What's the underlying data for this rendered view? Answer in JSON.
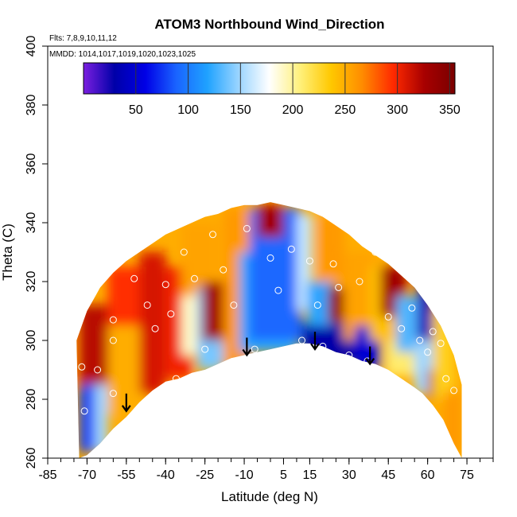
{
  "chart_data": {
    "type": "heatmap",
    "title": "ATOM3 Northbound Wind_Direction",
    "subtitle_lines": [
      "Flts: 7,8,9,10,11,12",
      "MMDD: 1014,1017,1019,1020,1023,1025"
    ],
    "xlabel": "Latitude (deg N)",
    "ylabel": "Theta (C)",
    "xlim": [
      -85,
      85
    ],
    "ylim": [
      260,
      400
    ],
    "x_ticks": [
      -85,
      -70,
      -55,
      -40,
      -25,
      -10,
      5,
      15,
      30,
      45,
      60,
      75
    ],
    "y_ticks": [
      260,
      280,
      300,
      320,
      340,
      360,
      380,
      400
    ],
    "colorbar": {
      "range": [
        0,
        355
      ],
      "ticks": [
        50,
        100,
        150,
        200,
        250,
        300,
        350
      ],
      "stops": [
        "#7b1fe0",
        "#0000a8",
        "#0000e6",
        "#1a64ff",
        "#1fa2ff",
        "#99d4ff",
        "#ffffff",
        "#fff07a",
        "#ffc800",
        "#ff8c00",
        "#ff2a00",
        "#a80000",
        "#7a0000"
      ]
    },
    "grid": false,
    "cells": [
      {
        "lat": [
          -73,
          -67
        ],
        "theta": [
          262,
          300
        ],
        "value": 80
      },
      {
        "lat": [
          -73,
          -60
        ],
        "theta": [
          285,
          312
        ],
        "value": 320
      },
      {
        "lat": [
          -67,
          -62
        ],
        "theta": [
          262,
          285
        ],
        "value": 150
      },
      {
        "lat": [
          -62,
          -50
        ],
        "theta": [
          275,
          305
        ],
        "value": 250
      },
      {
        "lat": [
          -62,
          -48
        ],
        "theta": [
          305,
          325
        ],
        "value": 295
      },
      {
        "lat": [
          -50,
          -40
        ],
        "theta": [
          282,
          330
        ],
        "value": 310
      },
      {
        "lat": [
          -40,
          -30
        ],
        "theta": [
          287,
          325
        ],
        "value": 300
      },
      {
        "lat": [
          -34,
          -28
        ],
        "theta": [
          295,
          325
        ],
        "value": 190
      },
      {
        "lat": [
          -34,
          -20
        ],
        "theta": [
          315,
          340
        ],
        "value": 255
      },
      {
        "lat": [
          -28,
          -18
        ],
        "theta": [
          290,
          318
        ],
        "value": 140
      },
      {
        "lat": [
          -26,
          -18
        ],
        "theta": [
          300,
          320
        ],
        "value": 330
      },
      {
        "lat": [
          -18,
          -8
        ],
        "theta": [
          292,
          345
        ],
        "value": 260
      },
      {
        "lat": [
          -12,
          10
        ],
        "theta": [
          296,
          330
        ],
        "value": 120
      },
      {
        "lat": [
          -8,
          12
        ],
        "theta": [
          300,
          345
        ],
        "value": 90
      },
      {
        "lat": [
          -5,
          5
        ],
        "theta": [
          335,
          346
        ],
        "value": 330
      },
      {
        "lat": [
          10,
          16
        ],
        "theta": [
          310,
          343
        ],
        "value": 160
      },
      {
        "lat": [
          12,
          32
        ],
        "theta": [
          293,
          306
        ],
        "value": 30
      },
      {
        "lat": [
          14,
          24
        ],
        "theta": [
          305,
          320
        ],
        "value": 120
      },
      {
        "lat": [
          18,
          28
        ],
        "theta": [
          320,
          342
        ],
        "value": 260
      },
      {
        "lat": [
          22,
          32
        ],
        "theta": [
          306,
          318
        ],
        "value": 340
      },
      {
        "lat": [
          28,
          40
        ],
        "theta": [
          300,
          330
        ],
        "value": 255
      },
      {
        "lat": [
          32,
          42
        ],
        "theta": [
          290,
          305
        ],
        "value": 50
      },
      {
        "lat": [
          38,
          48
        ],
        "theta": [
          300,
          325
        ],
        "value": 240
      },
      {
        "lat": [
          42,
          52
        ],
        "theta": [
          308,
          325
        ],
        "value": 330
      },
      {
        "lat": [
          44,
          56
        ],
        "theta": [
          288,
          300
        ],
        "value": 210
      },
      {
        "lat": [
          48,
          58
        ],
        "theta": [
          296,
          315
        ],
        "value": 130
      },
      {
        "lat": [
          55,
          62
        ],
        "theta": [
          282,
          300
        ],
        "value": 150
      },
      {
        "lat": [
          56,
          62
        ],
        "theta": [
          300,
          320
        ],
        "value": 20
      },
      {
        "lat": [
          60,
          66
        ],
        "theta": [
          280,
          290
        ],
        "value": 320
      },
      {
        "lat": [
          62,
          70
        ],
        "theta": [
          280,
          310
        ],
        "value": 230
      },
      {
        "lat": [
          66,
          73
        ],
        "theta": [
          262,
          283
        ],
        "value": 260
      }
    ],
    "observations": [
      {
        "lat": -72,
        "theta": 291
      },
      {
        "lat": -71,
        "theta": 276
      },
      {
        "lat": -66,
        "theta": 290
      },
      {
        "lat": -60,
        "theta": 307
      },
      {
        "lat": -60,
        "theta": 300
      },
      {
        "lat": -60,
        "theta": 282
      },
      {
        "lat": -52,
        "theta": 321
      },
      {
        "lat": -47,
        "theta": 312
      },
      {
        "lat": -44,
        "theta": 304
      },
      {
        "lat": -40,
        "theta": 319
      },
      {
        "lat": -38,
        "theta": 309
      },
      {
        "lat": -36,
        "theta": 287
      },
      {
        "lat": -33,
        "theta": 330
      },
      {
        "lat": -29,
        "theta": 321
      },
      {
        "lat": -25,
        "theta": 297
      },
      {
        "lat": -22,
        "theta": 336
      },
      {
        "lat": -18,
        "theta": 324
      },
      {
        "lat": -14,
        "theta": 312
      },
      {
        "lat": -9,
        "theta": 338
      },
      {
        "lat": -6,
        "theta": 297
      },
      {
        "lat": 0,
        "theta": 328
      },
      {
        "lat": 3,
        "theta": 317
      },
      {
        "lat": 8,
        "theta": 331
      },
      {
        "lat": 12,
        "theta": 300
      },
      {
        "lat": 15,
        "theta": 327
      },
      {
        "lat": 18,
        "theta": 312
      },
      {
        "lat": 20,
        "theta": 298
      },
      {
        "lat": 24,
        "theta": 326
      },
      {
        "lat": 26,
        "theta": 318
      },
      {
        "lat": 30,
        "theta": 295
      },
      {
        "lat": 34,
        "theta": 320
      },
      {
        "lat": 37,
        "theta": 293
      },
      {
        "lat": 40,
        "theta": 330
      },
      {
        "lat": 45,
        "theta": 308
      },
      {
        "lat": 50,
        "theta": 304
      },
      {
        "lat": 54,
        "theta": 311
      },
      {
        "lat": 57,
        "theta": 300
      },
      {
        "lat": 60,
        "theta": 296
      },
      {
        "lat": 62,
        "theta": 303
      },
      {
        "lat": 65,
        "theta": 299
      },
      {
        "lat": 67,
        "theta": 287
      },
      {
        "lat": 70,
        "theta": 283
      }
    ],
    "flight_arrows": [
      {
        "lat": -55,
        "theta": 276
      },
      {
        "lat": -9,
        "theta": 295
      },
      {
        "lat": 17,
        "theta": 297
      },
      {
        "lat": 38,
        "theta": 292
      }
    ],
    "envelope_top": [
      [
        -74,
        300
      ],
      [
        -70,
        310
      ],
      [
        -65,
        318
      ],
      [
        -60,
        323
      ],
      [
        -55,
        327
      ],
      [
        -50,
        330
      ],
      [
        -45,
        333
      ],
      [
        -40,
        336
      ],
      [
        -35,
        338
      ],
      [
        -30,
        340
      ],
      [
        -25,
        342
      ],
      [
        -20,
        343
      ],
      [
        -15,
        345
      ],
      [
        -10,
        346
      ],
      [
        -5,
        346
      ],
      [
        0,
        347
      ],
      [
        5,
        346
      ],
      [
        10,
        345
      ],
      [
        15,
        344
      ],
      [
        20,
        342
      ],
      [
        25,
        339
      ],
      [
        30,
        336
      ],
      [
        35,
        332
      ],
      [
        40,
        329
      ],
      [
        45,
        326
      ],
      [
        50,
        322
      ],
      [
        55,
        318
      ],
      [
        60,
        312
      ],
      [
        65,
        305
      ],
      [
        70,
        295
      ],
      [
        73,
        285
      ]
    ],
    "envelope_bottom": [
      [
        73,
        260
      ],
      [
        70,
        265
      ],
      [
        66,
        273
      ],
      [
        62,
        278
      ],
      [
        58,
        282
      ],
      [
        55,
        284
      ],
      [
        50,
        287
      ],
      [
        45,
        290
      ],
      [
        40,
        292
      ],
      [
        35,
        293
      ],
      [
        30,
        295
      ],
      [
        25,
        296
      ],
      [
        20,
        298
      ],
      [
        15,
        299
      ],
      [
        10,
        299
      ],
      [
        5,
        298
      ],
      [
        0,
        297
      ],
      [
        -5,
        296
      ],
      [
        -10,
        295
      ],
      [
        -15,
        294
      ],
      [
        -20,
        292
      ],
      [
        -25,
        290
      ],
      [
        -30,
        289
      ],
      [
        -35,
        287
      ],
      [
        -40,
        286
      ],
      [
        -45,
        283
      ],
      [
        -50,
        279
      ],
      [
        -55,
        274
      ],
      [
        -60,
        270
      ],
      [
        -65,
        265
      ],
      [
        -70,
        261
      ],
      [
        -73,
        260
      ]
    ]
  }
}
